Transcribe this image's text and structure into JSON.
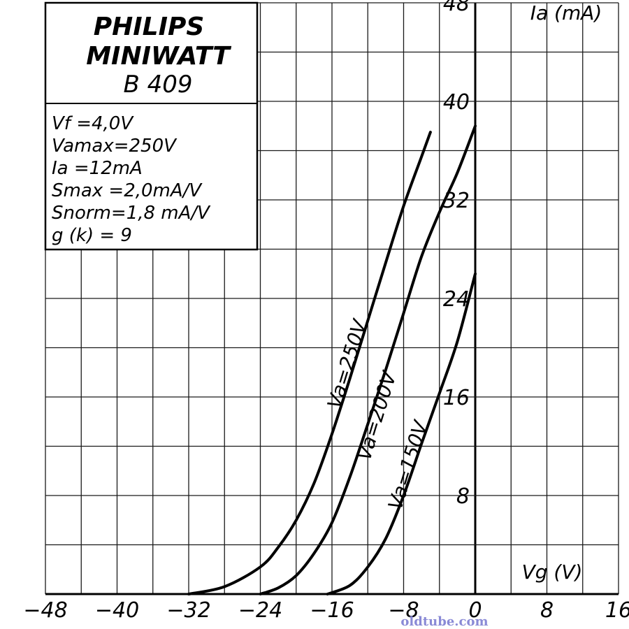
{
  "brand": {
    "line1": "PHILIPS",
    "line2": "MINIWATT",
    "model": "B 409"
  },
  "specs": [
    "Vf      =4,0V",
    "Vamax=250V",
    "Ia        =12mA",
    "Smax  =2,0mA/V",
    "Snorm=1,8 mA/V",
    "g (k)  = 9"
  ],
  "chart_data": {
    "type": "line",
    "xlabel": "Vg (V)",
    "ylabel": "Ia (mA)",
    "xlim": [
      -48,
      16
    ],
    "ylim": [
      0,
      48
    ],
    "x_ticks": [
      -48,
      -40,
      -32,
      -24,
      -16,
      -8,
      0,
      8,
      16
    ],
    "x_tick_labels": [
      "−48",
      "−40",
      "−32",
      "−24",
      "−16",
      "−8",
      "0",
      "8",
      "16"
    ],
    "y_ticks": [
      8,
      16,
      24,
      32,
      40,
      48
    ],
    "y_tick_labels": [
      "8",
      "16",
      "24",
      "32",
      "40",
      "48"
    ],
    "grid": true,
    "series": [
      {
        "name": "Va=250V",
        "x": [
          -32,
          -28,
          -24,
          -22,
          -20,
          -18,
          -16,
          -14,
          -12,
          -10,
          -8,
          -6,
          -5
        ],
        "y": [
          0,
          0.6,
          2.2,
          3.8,
          6.0,
          9.0,
          13.0,
          17.5,
          22.2,
          26.9,
          31.5,
          35.5,
          37.5
        ]
      },
      {
        "name": "Va=200V",
        "x": [
          -24,
          -22,
          -20,
          -18,
          -16,
          -14,
          -12,
          -10,
          -8,
          -6,
          -4,
          -2,
          0
        ],
        "y": [
          0,
          0.5,
          1.5,
          3.3,
          5.8,
          9.5,
          13.8,
          18.2,
          22.8,
          27.4,
          31.0,
          34.2,
          38.0
        ]
      },
      {
        "name": "Va=150V",
        "x": [
          -16.5,
          -14,
          -12,
          -10,
          -8,
          -6,
          -4,
          -2,
          0
        ],
        "y": [
          0,
          0.7,
          2.2,
          4.5,
          8.0,
          12.2,
          16.3,
          20.5,
          26.0
        ]
      }
    ]
  },
  "watermark": "oldtube.com"
}
